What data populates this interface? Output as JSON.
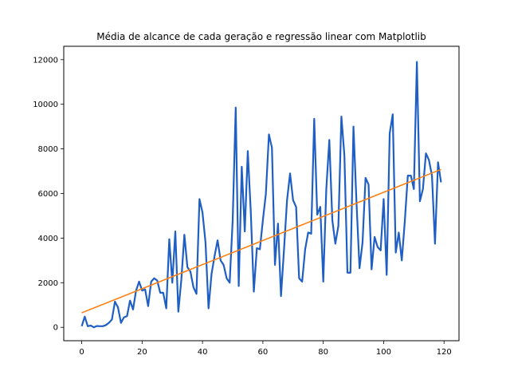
{
  "chart_data": {
    "type": "line",
    "title": "Média de alcance de cada geração e regressão linear com Matplotlib",
    "xlabel": "",
    "ylabel": "",
    "xlim": [
      -5.95,
      124.95
    ],
    "ylim": [
      -600,
      12600
    ],
    "x_ticks": [
      0,
      20,
      40,
      60,
      80,
      100,
      120
    ],
    "y_ticks": [
      0,
      2000,
      4000,
      6000,
      8000,
      10000,
      12000
    ],
    "x_tick_labels": [
      "0",
      "20",
      "40",
      "60",
      "80",
      "100",
      "120"
    ],
    "y_tick_labels": [
      "0",
      "2000",
      "4000",
      "6000",
      "8000",
      "10000",
      "12000"
    ],
    "grid": false,
    "legend": "none",
    "series": [
      {
        "role": "average",
        "color": "#1f5fc4",
        "x": [
          0,
          1,
          2,
          3,
          4,
          5,
          6,
          7,
          8,
          9,
          10,
          11,
          12,
          13,
          14,
          15,
          16,
          17,
          18,
          19,
          20,
          21,
          22,
          23,
          24,
          25,
          26,
          27,
          28,
          29,
          30,
          31,
          32,
          33,
          34,
          35,
          36,
          37,
          38,
          39,
          40,
          41,
          42,
          43,
          44,
          45,
          46,
          47,
          48,
          49,
          50,
          51,
          52,
          53,
          54,
          55,
          56,
          57,
          58,
          59,
          60,
          61,
          62,
          63,
          64,
          65,
          66,
          67,
          68,
          69,
          70,
          71,
          72,
          73,
          74,
          75,
          76,
          77,
          78,
          79,
          80,
          81,
          82,
          83,
          84,
          85,
          86,
          87,
          88,
          89,
          90,
          91,
          92,
          93,
          94,
          95,
          96,
          97,
          98,
          99,
          100,
          101,
          102,
          103,
          104,
          105,
          106,
          107,
          108,
          109,
          110,
          111,
          112,
          113,
          114,
          115,
          116,
          117,
          118,
          119
        ],
        "y": [
          50,
          480,
          50,
          80,
          0,
          60,
          50,
          50,
          100,
          200,
          350,
          1150,
          900,
          200,
          450,
          500,
          1200,
          800,
          1650,
          2050,
          1650,
          1700,
          950,
          2050,
          2200,
          2100,
          1550,
          1550,
          850,
          3950,
          2000,
          4300,
          700,
          2150,
          4150,
          2700,
          2500,
          1800,
          1500,
          5750,
          5150,
          3800,
          850,
          2400,
          3200,
          3900,
          3000,
          2800,
          2200,
          2000,
          4800,
          9850,
          1850,
          7200,
          4300,
          7900,
          5150,
          1600,
          3550,
          3500,
          4800,
          6000,
          8650,
          8050,
          2800,
          4650,
          1400,
          3500,
          5700,
          6900,
          5700,
          5400,
          2200,
          2050,
          3500,
          4250,
          4200,
          9350,
          5050,
          5400,
          2050,
          6200,
          8400,
          4800,
          3750,
          4550,
          9450,
          7700,
          2450,
          2450,
          9000,
          5600,
          2650,
          3800,
          6700,
          6400,
          2600,
          4050,
          3600,
          3450,
          5750,
          2350,
          8700,
          9550,
          3350,
          4250,
          3000,
          4750,
          6800,
          6800,
          6200,
          11900,
          5650,
          6200,
          7800,
          7500,
          6800,
          3750,
          7400,
          6500
        ]
      },
      {
        "role": "regression",
        "color": "#ff7f0e",
        "x": [
          0,
          119
        ],
        "y": [
          650,
          7080
        ]
      }
    ]
  }
}
